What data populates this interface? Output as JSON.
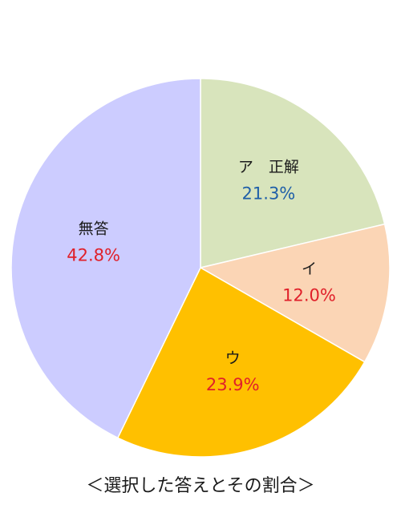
{
  "chart_data": {
    "type": "pie",
    "caption": "＜選択した答えとその割合＞",
    "start": "top",
    "direction": "clockwise",
    "slices": [
      {
        "label": "ア　正解",
        "value": 21.3,
        "value_label": "21.3%",
        "color": "#d8e4bc",
        "label_color": "#1f5fa8"
      },
      {
        "label": "イ",
        "value": 12.0,
        "value_label": "12.0%",
        "color": "#fbd5b5",
        "label_color": "#e0202a"
      },
      {
        "label": "ウ",
        "value": 23.9,
        "value_label": "23.9%",
        "color": "#ffc000",
        "label_color": "#e0202a"
      },
      {
        "label": "無答",
        "value": 42.8,
        "value_label": "42.8%",
        "color": "#ccccff",
        "label_color": "#e0202a"
      }
    ]
  }
}
